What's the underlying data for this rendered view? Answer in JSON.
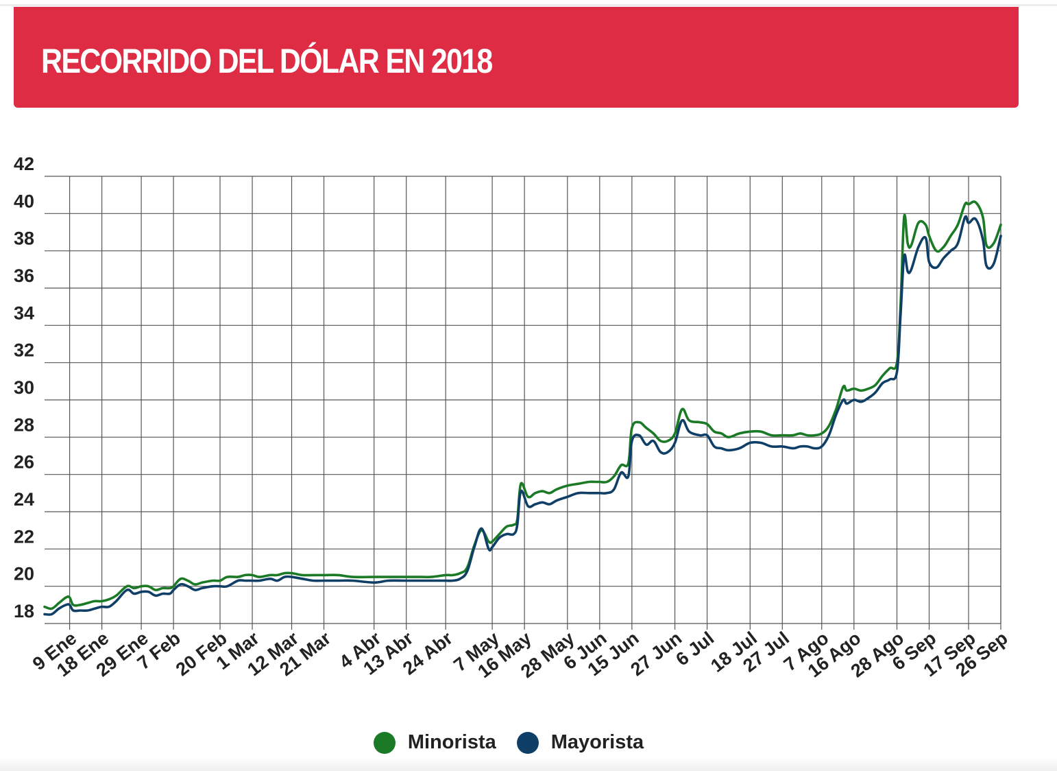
{
  "colors": {
    "header_bg": "#dd2c44",
    "minorista": "#1a7a26",
    "mayorista": "#0f3f66",
    "grid": "#555555"
  },
  "header": {
    "title": "RECORRIDO DEL DÓLAR EN 2018"
  },
  "chart_data": {
    "type": "line",
    "title": "RECORRIDO DEL DÓLAR EN 2018",
    "ylim": [
      18,
      42
    ],
    "yticks": [
      18,
      20,
      22,
      24,
      26,
      28,
      30,
      32,
      34,
      36,
      38,
      40,
      42
    ],
    "xlim": [
      "2018-01-02",
      "2018-09-26"
    ],
    "xticks": [
      {
        "date": "2018-01-09",
        "label": "9 Ene"
      },
      {
        "date": "2018-01-18",
        "label": "18 Ene"
      },
      {
        "date": "2018-01-29",
        "label": "29 Ene"
      },
      {
        "date": "2018-02-07",
        "label": "7 Feb"
      },
      {
        "date": "2018-02-20",
        "label": "20 Feb"
      },
      {
        "date": "2018-03-01",
        "label": "1 Mar"
      },
      {
        "date": "2018-03-12",
        "label": "12 Mar"
      },
      {
        "date": "2018-03-21",
        "label": "21 Mar"
      },
      {
        "date": "2018-04-04",
        "label": "4 Abr"
      },
      {
        "date": "2018-04-13",
        "label": "13 Abr"
      },
      {
        "date": "2018-04-24",
        "label": "24 Abr"
      },
      {
        "date": "2018-05-07",
        "label": "7 May"
      },
      {
        "date": "2018-05-16",
        "label": "16 May"
      },
      {
        "date": "2018-05-28",
        "label": "28 May"
      },
      {
        "date": "2018-06-06",
        "label": "6 Jun"
      },
      {
        "date": "2018-06-15",
        "label": "15 Jun"
      },
      {
        "date": "2018-06-27",
        "label": "27 Jun"
      },
      {
        "date": "2018-07-06",
        "label": "6 Jul"
      },
      {
        "date": "2018-07-18",
        "label": "18 Jul"
      },
      {
        "date": "2018-07-27",
        "label": "27 Jul"
      },
      {
        "date": "2018-08-07",
        "label": "7 Ago"
      },
      {
        "date": "2018-08-16",
        "label": "16 Ago"
      },
      {
        "date": "2018-08-28",
        "label": "28 Ago"
      },
      {
        "date": "2018-09-06",
        "label": "6 Sep"
      },
      {
        "date": "2018-09-17",
        "label": "17 Sep"
      },
      {
        "date": "2018-09-26",
        "label": "26 Sep"
      }
    ],
    "grid": true,
    "legend_position": "bottom-center",
    "series": [
      {
        "name": "Minorista",
        "x": [
          "2018-01-02",
          "2018-01-04",
          "2018-01-06",
          "2018-01-08",
          "2018-01-09",
          "2018-01-10",
          "2018-01-12",
          "2018-01-14",
          "2018-01-16",
          "2018-01-18",
          "2018-01-20",
          "2018-01-22",
          "2018-01-25",
          "2018-01-27",
          "2018-01-29",
          "2018-01-31",
          "2018-02-02",
          "2018-02-04",
          "2018-02-06",
          "2018-02-07",
          "2018-02-09",
          "2018-02-11",
          "2018-02-13",
          "2018-02-15",
          "2018-02-18",
          "2018-02-20",
          "2018-02-22",
          "2018-02-25",
          "2018-02-27",
          "2018-03-01",
          "2018-03-03",
          "2018-03-06",
          "2018-03-08",
          "2018-03-10",
          "2018-03-12",
          "2018-03-15",
          "2018-03-18",
          "2018-03-21",
          "2018-03-25",
          "2018-03-29",
          "2018-04-04",
          "2018-04-08",
          "2018-04-13",
          "2018-04-17",
          "2018-04-20",
          "2018-04-24",
          "2018-04-26",
          "2018-04-28",
          "2018-04-30",
          "2018-05-02",
          "2018-05-04",
          "2018-05-06",
          "2018-05-07",
          "2018-05-09",
          "2018-05-11",
          "2018-05-13",
          "2018-05-14",
          "2018-05-15",
          "2018-05-17",
          "2018-05-19",
          "2018-05-21",
          "2018-05-23",
          "2018-05-25",
          "2018-05-28",
          "2018-05-31",
          "2018-06-03",
          "2018-06-05",
          "2018-06-06",
          "2018-06-08",
          "2018-06-10",
          "2018-06-12",
          "2018-06-14",
          "2018-06-15",
          "2018-06-17",
          "2018-06-19",
          "2018-06-21",
          "2018-06-23",
          "2018-06-25",
          "2018-06-27",
          "2018-06-29",
          "2018-07-01",
          "2018-07-04",
          "2018-07-06",
          "2018-07-08",
          "2018-07-10",
          "2018-07-12",
          "2018-07-15",
          "2018-07-18",
          "2018-07-21",
          "2018-07-24",
          "2018-07-27",
          "2018-07-30",
          "2018-08-01",
          "2018-08-03",
          "2018-08-05",
          "2018-08-07",
          "2018-08-09",
          "2018-08-11",
          "2018-08-13",
          "2018-08-14",
          "2018-08-16",
          "2018-08-18",
          "2018-08-20",
          "2018-08-22",
          "2018-08-24",
          "2018-08-26",
          "2018-08-28",
          "2018-08-29",
          "2018-08-30",
          "2018-08-31",
          "2018-09-01",
          "2018-09-03",
          "2018-09-05",
          "2018-09-06",
          "2018-09-08",
          "2018-09-10",
          "2018-09-12",
          "2018-09-14",
          "2018-09-16",
          "2018-09-17",
          "2018-09-19",
          "2018-09-21",
          "2018-09-22",
          "2018-09-24",
          "2018-09-26"
        ],
        "y": [
          18.9,
          18.8,
          19.1,
          19.4,
          19.4,
          19.0,
          19.0,
          19.1,
          19.2,
          19.2,
          19.3,
          19.5,
          20.0,
          19.9,
          20.0,
          20.0,
          19.8,
          19.9,
          19.9,
          20.0,
          20.4,
          20.3,
          20.1,
          20.2,
          20.3,
          20.3,
          20.5,
          20.5,
          20.6,
          20.6,
          20.5,
          20.6,
          20.6,
          20.7,
          20.7,
          20.6,
          20.6,
          20.6,
          20.6,
          20.5,
          20.5,
          20.5,
          20.5,
          20.5,
          20.5,
          20.6,
          20.6,
          20.7,
          21.0,
          22.2,
          23.0,
          22.4,
          22.4,
          22.8,
          23.2,
          23.3,
          23.6,
          25.5,
          24.8,
          25.0,
          25.1,
          25.0,
          25.2,
          25.4,
          25.5,
          25.6,
          25.6,
          25.6,
          25.6,
          25.9,
          26.5,
          26.6,
          28.5,
          28.8,
          28.5,
          28.2,
          27.8,
          27.8,
          28.2,
          29.5,
          28.9,
          28.8,
          28.7,
          28.3,
          28.2,
          28.0,
          28.2,
          28.3,
          28.3,
          28.1,
          28.1,
          28.1,
          28.2,
          28.1,
          28.1,
          28.2,
          28.6,
          29.5,
          30.7,
          30.5,
          30.6,
          30.5,
          30.6,
          30.8,
          31.3,
          31.7,
          32.0,
          35.0,
          39.8,
          38.4,
          38.3,
          39.5,
          39.4,
          38.8,
          38.0,
          38.2,
          38.8,
          39.4,
          40.5,
          40.5,
          40.6,
          39.8,
          38.3,
          38.4,
          39.4
        ]
      },
      {
        "name": "Mayorista",
        "x": [
          "2018-01-02",
          "2018-01-04",
          "2018-01-06",
          "2018-01-08",
          "2018-01-09",
          "2018-01-10",
          "2018-01-12",
          "2018-01-14",
          "2018-01-16",
          "2018-01-18",
          "2018-01-20",
          "2018-01-22",
          "2018-01-25",
          "2018-01-27",
          "2018-01-29",
          "2018-01-31",
          "2018-02-02",
          "2018-02-04",
          "2018-02-06",
          "2018-02-07",
          "2018-02-09",
          "2018-02-11",
          "2018-02-13",
          "2018-02-15",
          "2018-02-18",
          "2018-02-20",
          "2018-02-22",
          "2018-02-25",
          "2018-02-27",
          "2018-03-01",
          "2018-03-03",
          "2018-03-06",
          "2018-03-08",
          "2018-03-10",
          "2018-03-12",
          "2018-03-15",
          "2018-03-18",
          "2018-03-21",
          "2018-03-25",
          "2018-03-29",
          "2018-04-04",
          "2018-04-08",
          "2018-04-13",
          "2018-04-17",
          "2018-04-20",
          "2018-04-24",
          "2018-04-26",
          "2018-04-28",
          "2018-04-30",
          "2018-05-02",
          "2018-05-04",
          "2018-05-06",
          "2018-05-07",
          "2018-05-09",
          "2018-05-11",
          "2018-05-13",
          "2018-05-14",
          "2018-05-15",
          "2018-05-17",
          "2018-05-19",
          "2018-05-21",
          "2018-05-23",
          "2018-05-25",
          "2018-05-28",
          "2018-05-31",
          "2018-06-03",
          "2018-06-05",
          "2018-06-06",
          "2018-06-08",
          "2018-06-10",
          "2018-06-12",
          "2018-06-14",
          "2018-06-15",
          "2018-06-17",
          "2018-06-19",
          "2018-06-21",
          "2018-06-23",
          "2018-06-25",
          "2018-06-27",
          "2018-06-29",
          "2018-07-01",
          "2018-07-04",
          "2018-07-06",
          "2018-07-08",
          "2018-07-10",
          "2018-07-12",
          "2018-07-15",
          "2018-07-18",
          "2018-07-21",
          "2018-07-24",
          "2018-07-27",
          "2018-07-30",
          "2018-08-01",
          "2018-08-03",
          "2018-08-05",
          "2018-08-07",
          "2018-08-09",
          "2018-08-11",
          "2018-08-13",
          "2018-08-14",
          "2018-08-16",
          "2018-08-18",
          "2018-08-20",
          "2018-08-22",
          "2018-08-24",
          "2018-08-26",
          "2018-08-28",
          "2018-08-29",
          "2018-08-30",
          "2018-08-31",
          "2018-09-01",
          "2018-09-03",
          "2018-09-05",
          "2018-09-06",
          "2018-09-08",
          "2018-09-10",
          "2018-09-12",
          "2018-09-14",
          "2018-09-16",
          "2018-09-17",
          "2018-09-19",
          "2018-09-21",
          "2018-09-22",
          "2018-09-24",
          "2018-09-26"
        ],
        "y": [
          18.5,
          18.5,
          18.8,
          19.0,
          19.0,
          18.7,
          18.7,
          18.7,
          18.8,
          18.9,
          18.9,
          19.2,
          19.8,
          19.6,
          19.7,
          19.7,
          19.5,
          19.6,
          19.6,
          19.8,
          20.1,
          20.0,
          19.8,
          19.9,
          20.0,
          20.0,
          20.0,
          20.3,
          20.3,
          20.3,
          20.3,
          20.4,
          20.3,
          20.5,
          20.5,
          20.4,
          20.3,
          20.3,
          20.3,
          20.3,
          20.2,
          20.3,
          20.3,
          20.3,
          20.3,
          20.3,
          20.3,
          20.4,
          20.8,
          22.1,
          23.1,
          22.0,
          22.1,
          22.6,
          22.8,
          22.8,
          23.3,
          25.1,
          24.3,
          24.4,
          24.5,
          24.4,
          24.6,
          24.8,
          25.0,
          25.0,
          25.0,
          25.0,
          25.0,
          25.2,
          26.1,
          25.9,
          27.8,
          28.1,
          27.6,
          27.8,
          27.2,
          27.2,
          27.7,
          28.9,
          28.3,
          28.1,
          28.1,
          27.5,
          27.4,
          27.3,
          27.4,
          27.7,
          27.7,
          27.5,
          27.5,
          27.4,
          27.5,
          27.5,
          27.4,
          27.5,
          28.1,
          29.2,
          30.0,
          29.8,
          30.0,
          29.9,
          30.1,
          30.4,
          30.9,
          31.1,
          31.5,
          34.5,
          37.7,
          36.9,
          37.0,
          38.2,
          38.7,
          37.4,
          37.1,
          37.6,
          38.0,
          38.4,
          39.8,
          39.5,
          39.7,
          38.6,
          37.2,
          37.3,
          38.8
        ]
      }
    ]
  },
  "legend": {
    "items": [
      {
        "label": "Minorista"
      },
      {
        "label": "Mayorista"
      }
    ]
  }
}
